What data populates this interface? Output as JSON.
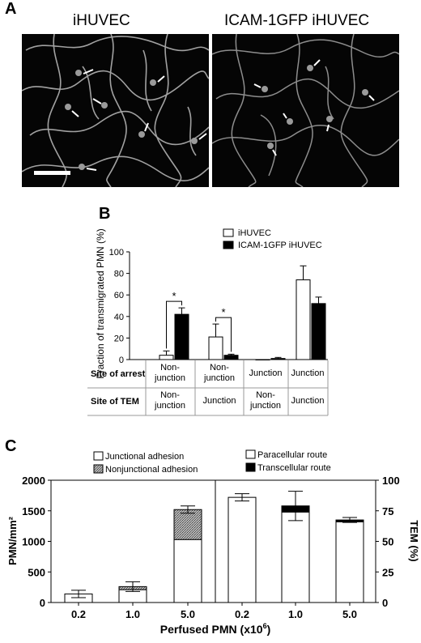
{
  "panel_a": {
    "label": "A",
    "left_title": "iHUVEC",
    "right_title": "ICAM-1GFP iHUVEC"
  },
  "panel_b": {
    "label": "B",
    "legend": [
      "iHUVEC",
      "ICAM-1GFP iHUVEC"
    ],
    "row_labels": [
      "Site of arrest",
      "Site of TEM"
    ],
    "arrest": [
      "Non-\njunction",
      "Non-\njunction",
      "Junction",
      "Junction"
    ],
    "tem": [
      "Non-\njunction",
      "Junction",
      "Non-\njunction",
      "Junction"
    ],
    "significance": "*"
  },
  "panel_c": {
    "label": "C",
    "legend_left": [
      "Junctional adhesion",
      "Nonjunctional adhesion"
    ],
    "legend_right": [
      "Paracellular route",
      "Transcellular route"
    ],
    "xlabel": "Perfused PMN (x10",
    "xlabel_sup": "6",
    "xlabel_end": ")",
    "colors": {
      "white": "#ffffff",
      "black": "#000000",
      "stipple": "#9a9a9a"
    }
  },
  "chart_data": [
    {
      "type": "bar",
      "categories": [
        "Non-junction / Non-junction",
        "Non-junction / Junction",
        "Junction / Non-junction",
        "Junction / Junction"
      ],
      "series": [
        {
          "name": "iHUVEC",
          "values": [
            4,
            21,
            0,
            74
          ],
          "errors": [
            4,
            12,
            0,
            13
          ]
        },
        {
          "name": "ICAM-1GFP iHUVEC",
          "values": [
            42,
            4,
            1,
            52
          ],
          "errors": [
            6,
            1,
            1,
            6
          ]
        }
      ],
      "ylabel": "Fraction of transmigrated PMN (%)",
      "yticks": [
        0,
        20,
        40,
        60,
        80,
        100
      ],
      "ylim": [
        0,
        100
      ],
      "significant_pairs": [
        0,
        1
      ]
    },
    {
      "type": "bar",
      "stacked": true,
      "categories": [
        "0.2",
        "1.0",
        "5.0"
      ],
      "series": [
        {
          "name": "Junctional adhesion",
          "values": [
            140,
            210,
            1030
          ]
        },
        {
          "name": "Nonjunctional adhesion",
          "values": [
            0,
            50,
            490
          ]
        }
      ],
      "errors": [
        60,
        80,
        60
      ],
      "ylabel": "PMN/mm²",
      "yticks": [
        0,
        500,
        1000,
        1500,
        2000
      ],
      "ylim": [
        0,
        2000
      ]
    },
    {
      "type": "bar",
      "stacked": true,
      "categories": [
        "0.2",
        "1.0",
        "5.0"
      ],
      "series": [
        {
          "name": "Paracellular route",
          "values": [
            86,
            74,
            66
          ]
        },
        {
          "name": "Transcellular route",
          "values": [
            0,
            5,
            1.5
          ]
        }
      ],
      "errors": [
        3,
        12,
        2
      ],
      "ylabel": "TEM (%)",
      "yticks": [
        0,
        25,
        50,
        75,
        100
      ],
      "ylim": [
        0,
        100
      ]
    }
  ]
}
